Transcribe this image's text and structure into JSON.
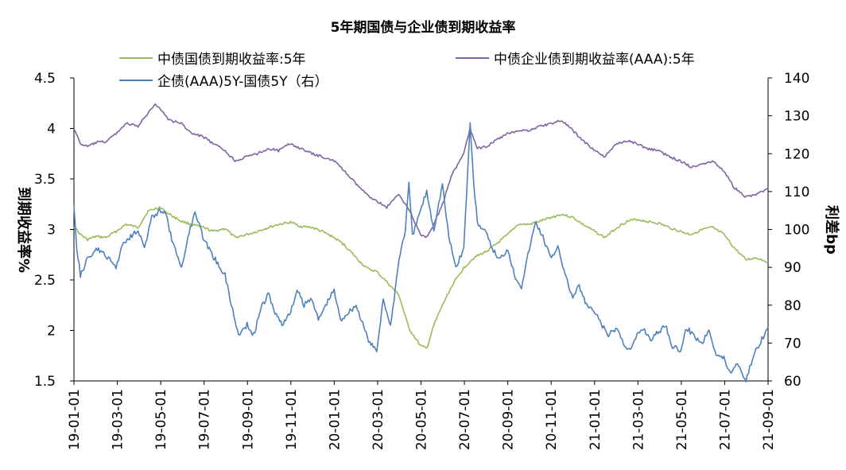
{
  "chart_data": {
    "type": "line",
    "title": "5年期国债与企业债到期收益率",
    "ylabel_left": "到期收益率%",
    "ylabel_right": "利差bp",
    "x_ticks": [
      "19-01-01",
      "19-03-01",
      "19-05-01",
      "19-07-01",
      "19-09-01",
      "19-11-01",
      "20-01-01",
      "20-03-01",
      "20-05-01",
      "20-07-01",
      "20-09-01",
      "20-11-01",
      "21-01-01",
      "21-03-01",
      "21-05-01",
      "21-07-01",
      "21-09-01"
    ],
    "x_range": [
      "2019-01-01",
      "2021-09-01"
    ],
    "ylim_left": [
      1.5,
      4.5
    ],
    "yticks_left": [
      "1.5",
      "2",
      "2.5",
      "3",
      "3.5",
      "4",
      "4.5"
    ],
    "ylim_right": [
      60,
      140
    ],
    "yticks_right": [
      "60",
      "70",
      "80",
      "90",
      "100",
      "110",
      "120",
      "130",
      "140"
    ],
    "grid": false,
    "legend_position": "top",
    "series": [
      {
        "name": "中债国债到期收益率:5年",
        "axis": "left",
        "color": "#9bbb59",
        "points": [
          [
            "2019-01-01",
            3.03
          ],
          [
            "2019-01-10",
            2.95
          ],
          [
            "2019-01-20",
            2.9
          ],
          [
            "2019-02-01",
            2.93
          ],
          [
            "2019-02-15",
            2.92
          ],
          [
            "2019-03-01",
            2.98
          ],
          [
            "2019-03-15",
            3.05
          ],
          [
            "2019-04-01",
            3.02
          ],
          [
            "2019-04-15",
            3.18
          ],
          [
            "2019-05-01",
            3.22
          ],
          [
            "2019-05-15",
            3.15
          ],
          [
            "2019-06-01",
            3.08
          ],
          [
            "2019-06-15",
            3.05
          ],
          [
            "2019-07-01",
            3.02
          ],
          [
            "2019-07-15",
            2.98
          ],
          [
            "2019-08-01",
            3.01
          ],
          [
            "2019-08-15",
            2.92
          ],
          [
            "2019-09-01",
            2.95
          ],
          [
            "2019-09-15",
            2.98
          ],
          [
            "2019-10-01",
            3.02
          ],
          [
            "2019-10-15",
            3.05
          ],
          [
            "2019-11-01",
            3.07
          ],
          [
            "2019-11-15",
            3.03
          ],
          [
            "2019-12-01",
            3.02
          ],
          [
            "2019-12-15",
            2.98
          ],
          [
            "2020-01-01",
            2.92
          ],
          [
            "2020-01-15",
            2.85
          ],
          [
            "2020-02-01",
            2.72
          ],
          [
            "2020-02-15",
            2.62
          ],
          [
            "2020-03-01",
            2.58
          ],
          [
            "2020-03-15",
            2.48
          ],
          [
            "2020-04-01",
            2.35
          ],
          [
            "2020-04-15",
            2.02
          ],
          [
            "2020-05-01",
            1.85
          ],
          [
            "2020-05-10",
            1.82
          ],
          [
            "2020-05-20",
            2.05
          ],
          [
            "2020-06-01",
            2.25
          ],
          [
            "2020-06-15",
            2.45
          ],
          [
            "2020-07-01",
            2.62
          ],
          [
            "2020-07-15",
            2.72
          ],
          [
            "2020-08-01",
            2.78
          ],
          [
            "2020-08-15",
            2.85
          ],
          [
            "2020-09-01",
            2.95
          ],
          [
            "2020-09-15",
            3.05
          ],
          [
            "2020-10-01",
            3.05
          ],
          [
            "2020-10-15",
            3.08
          ],
          [
            "2020-11-01",
            3.12
          ],
          [
            "2020-11-15",
            3.15
          ],
          [
            "2020-12-01",
            3.12
          ],
          [
            "2020-12-15",
            3.05
          ],
          [
            "2021-01-01",
            2.98
          ],
          [
            "2021-01-15",
            2.92
          ],
          [
            "2021-02-01",
            3.02
          ],
          [
            "2021-02-15",
            3.08
          ],
          [
            "2021-03-01",
            3.1
          ],
          [
            "2021-03-15",
            3.08
          ],
          [
            "2021-04-01",
            3.06
          ],
          [
            "2021-04-15",
            3.02
          ],
          [
            "2021-05-01",
            2.98
          ],
          [
            "2021-05-15",
            2.95
          ],
          [
            "2021-06-01",
            3.0
          ],
          [
            "2021-06-15",
            3.02
          ],
          [
            "2021-07-01",
            2.95
          ],
          [
            "2021-07-15",
            2.82
          ],
          [
            "2021-08-01",
            2.7
          ],
          [
            "2021-08-15",
            2.72
          ],
          [
            "2021-09-01",
            2.68
          ]
        ]
      },
      {
        "name": "中债企业债到期收益率(AAA):5年",
        "axis": "left",
        "color": "#8064a2",
        "points": [
          [
            "2019-01-01",
            4.0
          ],
          [
            "2019-01-10",
            3.85
          ],
          [
            "2019-01-20",
            3.82
          ],
          [
            "2019-02-01",
            3.86
          ],
          [
            "2019-02-15",
            3.87
          ],
          [
            "2019-03-01",
            3.95
          ],
          [
            "2019-03-15",
            4.05
          ],
          [
            "2019-04-01",
            4.02
          ],
          [
            "2019-04-15",
            4.15
          ],
          [
            "2019-04-25",
            4.25
          ],
          [
            "2019-05-01",
            4.2
          ],
          [
            "2019-05-15",
            4.08
          ],
          [
            "2019-06-01",
            4.05
          ],
          [
            "2019-06-15",
            3.95
          ],
          [
            "2019-07-01",
            3.92
          ],
          [
            "2019-07-15",
            3.85
          ],
          [
            "2019-08-01",
            3.78
          ],
          [
            "2019-08-15",
            3.68
          ],
          [
            "2019-09-01",
            3.72
          ],
          [
            "2019-09-15",
            3.75
          ],
          [
            "2019-10-01",
            3.8
          ],
          [
            "2019-10-15",
            3.78
          ],
          [
            "2019-11-01",
            3.85
          ],
          [
            "2019-11-15",
            3.8
          ],
          [
            "2019-12-01",
            3.75
          ],
          [
            "2019-12-15",
            3.72
          ],
          [
            "2020-01-01",
            3.68
          ],
          [
            "2020-01-15",
            3.58
          ],
          [
            "2020-02-01",
            3.45
          ],
          [
            "2020-02-15",
            3.35
          ],
          [
            "2020-03-01",
            3.28
          ],
          [
            "2020-03-15",
            3.22
          ],
          [
            "2020-04-01",
            3.35
          ],
          [
            "2020-04-15",
            3.2
          ],
          [
            "2020-05-01",
            2.95
          ],
          [
            "2020-05-10",
            2.92
          ],
          [
            "2020-05-20",
            3.05
          ],
          [
            "2020-06-01",
            3.25
          ],
          [
            "2020-06-15",
            3.55
          ],
          [
            "2020-07-01",
            3.75
          ],
          [
            "2020-07-10",
            4.0
          ],
          [
            "2020-07-20",
            3.8
          ],
          [
            "2020-08-01",
            3.82
          ],
          [
            "2020-08-15",
            3.88
          ],
          [
            "2020-09-01",
            3.95
          ],
          [
            "2020-09-15",
            3.98
          ],
          [
            "2020-10-01",
            3.98
          ],
          [
            "2020-10-15",
            4.02
          ],
          [
            "2020-11-01",
            4.05
          ],
          [
            "2020-11-15",
            4.08
          ],
          [
            "2020-12-01",
            3.98
          ],
          [
            "2020-12-15",
            3.88
          ],
          [
            "2021-01-01",
            3.78
          ],
          [
            "2021-01-15",
            3.72
          ],
          [
            "2021-02-01",
            3.85
          ],
          [
            "2021-02-15",
            3.88
          ],
          [
            "2021-03-01",
            3.85
          ],
          [
            "2021-03-15",
            3.8
          ],
          [
            "2021-04-01",
            3.78
          ],
          [
            "2021-04-15",
            3.72
          ],
          [
            "2021-05-01",
            3.68
          ],
          [
            "2021-05-15",
            3.62
          ],
          [
            "2021-06-01",
            3.65
          ],
          [
            "2021-06-15",
            3.68
          ],
          [
            "2021-07-01",
            3.58
          ],
          [
            "2021-07-15",
            3.42
          ],
          [
            "2021-08-01",
            3.32
          ],
          [
            "2021-08-15",
            3.35
          ],
          [
            "2021-09-01",
            3.4
          ]
        ]
      },
      {
        "name": "企债(AAA)5Y-国债5Y（右）",
        "axis": "right",
        "color": "#4f81bd",
        "points": [
          [
            "2019-01-01",
            107
          ],
          [
            "2019-01-05",
            95
          ],
          [
            "2019-01-10",
            88
          ],
          [
            "2019-01-20",
            92
          ],
          [
            "2019-02-01",
            95
          ],
          [
            "2019-02-15",
            93
          ],
          [
            "2019-03-01",
            90
          ],
          [
            "2019-03-10",
            96
          ],
          [
            "2019-03-20",
            98
          ],
          [
            "2019-04-01",
            100
          ],
          [
            "2019-04-10",
            95
          ],
          [
            "2019-04-20",
            103
          ],
          [
            "2019-05-01",
            105
          ],
          [
            "2019-05-10",
            104
          ],
          [
            "2019-05-20",
            96
          ],
          [
            "2019-06-01",
            90
          ],
          [
            "2019-06-10",
            98
          ],
          [
            "2019-06-20",
            105
          ],
          [
            "2019-07-01",
            98
          ],
          [
            "2019-07-15",
            93
          ],
          [
            "2019-08-01",
            88
          ],
          [
            "2019-08-10",
            80
          ],
          [
            "2019-08-20",
            72
          ],
          [
            "2019-09-01",
            75
          ],
          [
            "2019-09-10",
            72
          ],
          [
            "2019-09-20",
            79
          ],
          [
            "2019-10-01",
            83
          ],
          [
            "2019-10-10",
            78
          ],
          [
            "2019-10-20",
            75
          ],
          [
            "2019-11-01",
            78
          ],
          [
            "2019-11-10",
            84
          ],
          [
            "2019-11-20",
            80
          ],
          [
            "2019-12-01",
            82
          ],
          [
            "2019-12-10",
            76
          ],
          [
            "2019-12-20",
            80
          ],
          [
            "2020-01-01",
            84
          ],
          [
            "2020-01-10",
            76
          ],
          [
            "2020-01-20",
            78
          ],
          [
            "2020-02-01",
            80
          ],
          [
            "2020-02-10",
            75
          ],
          [
            "2020-02-20",
            70
          ],
          [
            "2020-03-01",
            68
          ],
          [
            "2020-03-10",
            82
          ],
          [
            "2020-03-20",
            74
          ],
          [
            "2020-04-01",
            92
          ],
          [
            "2020-04-10",
            100
          ],
          [
            "2020-04-15",
            112
          ],
          [
            "2020-04-20",
            98
          ],
          [
            "2020-05-01",
            105
          ],
          [
            "2020-05-10",
            110
          ],
          [
            "2020-05-20",
            100
          ],
          [
            "2020-06-01",
            112
          ],
          [
            "2020-06-10",
            98
          ],
          [
            "2020-06-20",
            90
          ],
          [
            "2020-07-01",
            95
          ],
          [
            "2020-07-05",
            110
          ],
          [
            "2020-07-10",
            128
          ],
          [
            "2020-07-15",
            112
          ],
          [
            "2020-07-20",
            102
          ],
          [
            "2020-08-01",
            99
          ],
          [
            "2020-08-10",
            95
          ],
          [
            "2020-08-20",
            92
          ],
          [
            "2020-09-01",
            95
          ],
          [
            "2020-09-10",
            88
          ],
          [
            "2020-09-20",
            85
          ],
          [
            "2020-10-01",
            95
          ],
          [
            "2020-10-10",
            102
          ],
          [
            "2020-10-20",
            98
          ],
          [
            "2020-11-01",
            92
          ],
          [
            "2020-11-10",
            96
          ],
          [
            "2020-11-20",
            88
          ],
          [
            "2020-12-01",
            82
          ],
          [
            "2020-12-10",
            85
          ],
          [
            "2020-12-20",
            80
          ],
          [
            "2021-01-01",
            78
          ],
          [
            "2021-01-10",
            75
          ],
          [
            "2021-01-20",
            72
          ],
          [
            "2021-02-01",
            74
          ],
          [
            "2021-02-10",
            70
          ],
          [
            "2021-02-20",
            68
          ],
          [
            "2021-03-01",
            72
          ],
          [
            "2021-03-10",
            74
          ],
          [
            "2021-03-20",
            71
          ],
          [
            "2021-04-01",
            73
          ],
          [
            "2021-04-10",
            75
          ],
          [
            "2021-04-20",
            69
          ],
          [
            "2021-05-01",
            68
          ],
          [
            "2021-05-10",
            74
          ],
          [
            "2021-05-20",
            72
          ],
          [
            "2021-06-01",
            70
          ],
          [
            "2021-06-10",
            74
          ],
          [
            "2021-06-20",
            67
          ],
          [
            "2021-07-01",
            66
          ],
          [
            "2021-07-10",
            62
          ],
          [
            "2021-07-20",
            65
          ],
          [
            "2021-08-01",
            60
          ],
          [
            "2021-08-10",
            66
          ],
          [
            "2021-08-20",
            70
          ],
          [
            "2021-09-01",
            74
          ]
        ]
      }
    ]
  }
}
